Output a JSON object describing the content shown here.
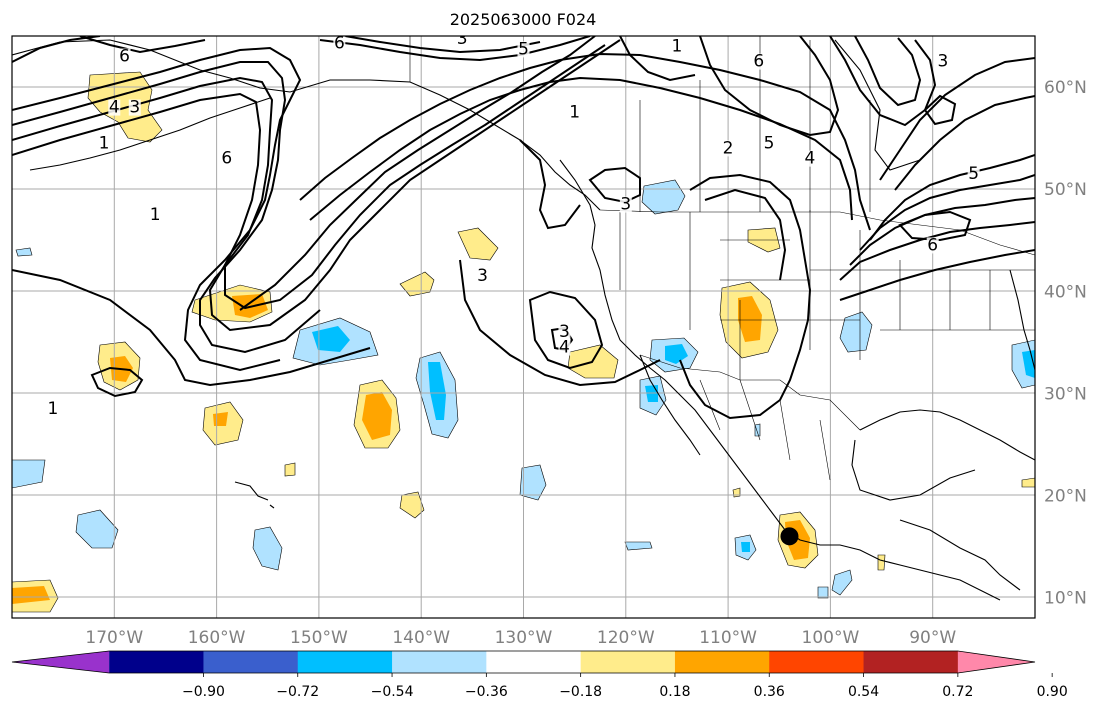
{
  "title": "2025063000 F024",
  "map": {
    "lon_range": [
      -180,
      -80
    ],
    "lat_range": [
      8,
      65
    ],
    "lon_ticks": [
      {
        "value": -170,
        "label": "170°W"
      },
      {
        "value": -160,
        "label": "160°W"
      },
      {
        "value": -150,
        "label": "150°W"
      },
      {
        "value": -140,
        "label": "140°W"
      },
      {
        "value": -130,
        "label": "130°W"
      },
      {
        "value": -120,
        "label": "120°W"
      },
      {
        "value": -110,
        "label": "110°W"
      },
      {
        "value": -100,
        "label": "100°W"
      },
      {
        "value": -90,
        "label": "90°W"
      }
    ],
    "lat_ticks": [
      {
        "value": 60,
        "label": "60°N"
      },
      {
        "value": 50,
        "label": "50°N"
      },
      {
        "value": 40,
        "label": "40°N"
      },
      {
        "value": 30,
        "label": "30°N"
      },
      {
        "value": 20,
        "label": "20°N"
      },
      {
        "value": 10,
        "label": "10°N"
      }
    ],
    "grid": true,
    "marker": {
      "lon": -104,
      "lat": 16,
      "color": "#000000"
    },
    "contour_labels": [
      {
        "text": "6",
        "lon": -169,
        "lat": 62.5
      },
      {
        "text": "6",
        "lon": -148,
        "lat": 63.8
      },
      {
        "text": "3",
        "lon": -168,
        "lat": 57.5
      },
      {
        "text": "4",
        "lon": -170,
        "lat": 57.5
      },
      {
        "text": "5",
        "lon": -130,
        "lat": 63.2
      },
      {
        "text": "3",
        "lon": -136,
        "lat": 64.2
      },
      {
        "text": "1",
        "lon": -115,
        "lat": 63.5
      },
      {
        "text": "6",
        "lon": -107,
        "lat": 62
      },
      {
        "text": "3",
        "lon": -89,
        "lat": 62
      },
      {
        "text": "1",
        "lon": -171,
        "lat": 54
      },
      {
        "text": "1",
        "lon": -166,
        "lat": 47
      },
      {
        "text": "1",
        "lon": -125,
        "lat": 57
      },
      {
        "text": "2",
        "lon": -110,
        "lat": 53.5
      },
      {
        "text": "5",
        "lon": -106,
        "lat": 54
      },
      {
        "text": "4",
        "lon": -102,
        "lat": 52.5
      },
      {
        "text": "5",
        "lon": -86,
        "lat": 51
      },
      {
        "text": "3",
        "lon": -120,
        "lat": 48
      },
      {
        "text": "6",
        "lon": -159,
        "lat": 52.5
      },
      {
        "text": "3",
        "lon": -134,
        "lat": 41
      },
      {
        "text": "3",
        "lon": -126,
        "lat": 35.5
      },
      {
        "text": "4",
        "lon": -126,
        "lat": 34
      },
      {
        "text": "6",
        "lon": -90,
        "lat": 44
      },
      {
        "text": "1",
        "lon": -176,
        "lat": 28
      }
    ]
  },
  "colorbar": {
    "colors": [
      "#9932cc",
      "#00008b",
      "#3a5fcd",
      "#00bfff",
      "#b0e2ff",
      "#ffffff",
      "#ffec8b",
      "#ffa500",
      "#ff4500",
      "#b22222",
      "#ff88aa"
    ],
    "tick_labels": [
      "−0.90",
      "−0.72",
      "−0.54",
      "−0.36",
      "−0.18",
      "0.18",
      "0.36",
      "0.54",
      "0.72",
      "0.90"
    ]
  },
  "fill_colors": {
    "yellow": "#ffec8b",
    "orange": "#ffa500",
    "lightblue": "#b0e2ff",
    "blue": "#00bfff"
  }
}
